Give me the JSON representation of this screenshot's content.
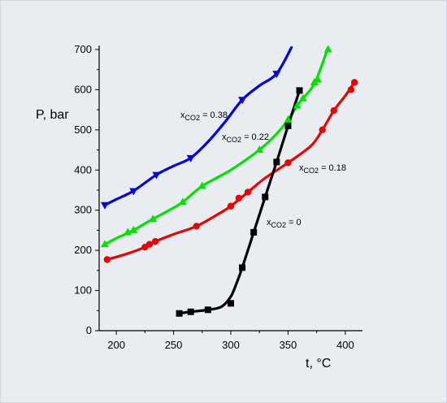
{
  "chart_data": {
    "type": "line",
    "xlabel": "t, °C",
    "ylabel": "P, bar",
    "xlim": [
      185,
      415
    ],
    "ylim": [
      0,
      710
    ],
    "xticks": [
      200,
      250,
      300,
      350,
      400
    ],
    "yticks": [
      0,
      100,
      200,
      300,
      400,
      500,
      600,
      700
    ],
    "grid": false,
    "series": [
      {
        "name": "xCO2 = 0.38",
        "label_main": "x",
        "label_sub": "CO2",
        "label_tail": " = 0.38",
        "color": "#0000e0",
        "marker": "triangle-down",
        "points": [
          [
            190,
            313
          ],
          [
            215,
            348
          ],
          [
            235,
            388
          ],
          [
            265,
            430
          ],
          [
            310,
            575
          ],
          [
            340,
            640
          ]
        ],
        "curve": [
          [
            190,
            313
          ],
          [
            200,
            327
          ],
          [
            215,
            348
          ],
          [
            235,
            388
          ],
          [
            250,
            410
          ],
          [
            265,
            430
          ],
          [
            280,
            470
          ],
          [
            295,
            520
          ],
          [
            310,
            575
          ],
          [
            325,
            610
          ],
          [
            340,
            640
          ],
          [
            353,
            705
          ]
        ]
      },
      {
        "name": "xCO2 = 0.22",
        "label_main": "x",
        "label_sub": "CO2",
        "label_tail": " = 0.22",
        "color": "#00e000",
        "marker": "triangle-up",
        "points": [
          [
            190,
            215
          ],
          [
            210,
            245
          ],
          [
            215,
            250
          ],
          [
            232,
            278
          ],
          [
            258,
            320
          ],
          [
            275,
            360
          ],
          [
            325,
            450
          ],
          [
            350,
            525
          ],
          [
            358,
            560
          ],
          [
            363,
            578
          ],
          [
            373,
            618
          ],
          [
            376,
            625
          ],
          [
            385,
            700
          ]
        ],
        "curve": [
          [
            190,
            215
          ],
          [
            200,
            230
          ],
          [
            215,
            250
          ],
          [
            230,
            275
          ],
          [
            245,
            298
          ],
          [
            258,
            320
          ],
          [
            275,
            360
          ],
          [
            300,
            400
          ],
          [
            325,
            450
          ],
          [
            340,
            490
          ],
          [
            350,
            525
          ],
          [
            360,
            568
          ],
          [
            373,
            615
          ],
          [
            385,
            705
          ]
        ]
      },
      {
        "name": "xCO2 = 0.18",
        "label_main": "x",
        "label_sub": "CO2",
        "label_tail": " = 0.18",
        "color": "#e80000",
        "marker": "circle",
        "points": [
          [
            192,
            177
          ],
          [
            225,
            208
          ],
          [
            229,
            215
          ],
          [
            234,
            222
          ],
          [
            270,
            260
          ],
          [
            300,
            310
          ],
          [
            307,
            330
          ],
          [
            315,
            345
          ],
          [
            350,
            418
          ],
          [
            380,
            500
          ],
          [
            390,
            548
          ],
          [
            405,
            600
          ],
          [
            408,
            618
          ]
        ],
        "curve": [
          [
            192,
            177
          ],
          [
            210,
            192
          ],
          [
            225,
            208
          ],
          [
            234,
            222
          ],
          [
            250,
            240
          ],
          [
            270,
            260
          ],
          [
            290,
            292
          ],
          [
            300,
            310
          ],
          [
            315,
            345
          ],
          [
            330,
            380
          ],
          [
            350,
            418
          ],
          [
            370,
            460
          ],
          [
            380,
            500
          ],
          [
            390,
            548
          ],
          [
            400,
            585
          ],
          [
            408,
            618
          ]
        ]
      },
      {
        "name": "xCO2 = 0",
        "label_main": "x",
        "label_sub": "CO2",
        "label_tail": " = 0",
        "color": "#000000",
        "marker": "square",
        "points": [
          [
            255,
            43
          ],
          [
            265,
            47
          ],
          [
            280,
            52
          ],
          [
            300,
            68
          ],
          [
            310,
            157
          ],
          [
            320,
            245
          ],
          [
            330,
            333
          ],
          [
            340,
            420
          ],
          [
            350,
            510
          ],
          [
            360,
            598
          ]
        ],
        "curve": [
          [
            255,
            43
          ],
          [
            265,
            47
          ],
          [
            280,
            52
          ],
          [
            292,
            60
          ],
          [
            300,
            85
          ],
          [
            305,
            118
          ],
          [
            310,
            157
          ],
          [
            320,
            245
          ],
          [
            330,
            333
          ],
          [
            340,
            420
          ],
          [
            350,
            510
          ],
          [
            360,
            598
          ]
        ]
      }
    ]
  }
}
